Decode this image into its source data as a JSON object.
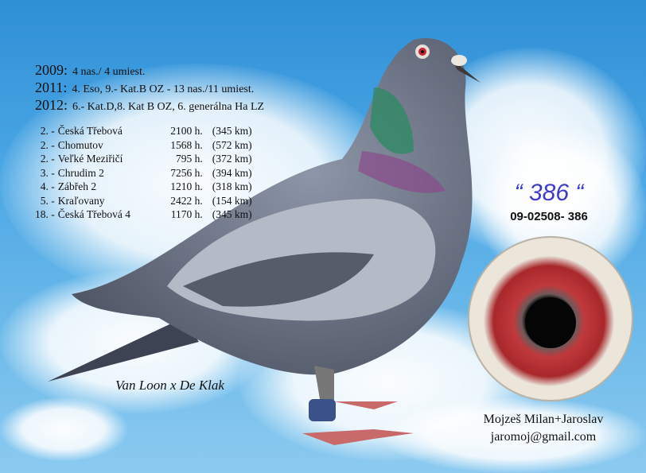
{
  "results": [
    {
      "year": "2009:",
      "text": "4 nas./ 4 umiest."
    },
    {
      "year": "2011:",
      "text": "4. Eso, 9.- Kat.B  OZ  -  13 nas./11 umiest."
    },
    {
      "year": "2012:",
      "text": "6.- Kat.D,8. Kat B  OZ, 6. generálna Ha LZ"
    }
  ],
  "races": [
    {
      "place": "2. -",
      "name": "Česká Třebová",
      "birds": "2100 h.",
      "distance": "(345 km)"
    },
    {
      "place": "2. -",
      "name": "Chomutov",
      "birds": "1568 h.",
      "distance": "(572 km)"
    },
    {
      "place": "2. -",
      "name": "Veľké Meziřičí",
      "birds": "795 h.",
      "distance": "(372 km)"
    },
    {
      "place": "3. -",
      "name": "Chrudim 2",
      "birds": "7256 h.",
      "distance": "(394 km)"
    },
    {
      "place": "4. -",
      "name": "Zábřeh 2",
      "birds": "1210 h.",
      "distance": "(318 km)"
    },
    {
      "place": "5. -",
      "name": "Kraľovany",
      "birds": "2422 h.",
      "distance": "(154 km)"
    },
    {
      "place": "18. -",
      "name": "Česká Třebová 4",
      "birds": "1170 h.",
      "distance": "(345 km)"
    }
  ],
  "ring_short": "“ 386 “",
  "ring_number": "09-02508- 386",
  "pedigree": "Van Loon x De Klak",
  "owner": {
    "name": "Mojzeš Milan+Jaroslav",
    "email": "jaromoj@gmail.com"
  },
  "colors": {
    "sky": "#4aa6e4",
    "ring_text": "#3b3cc8",
    "eye_iris": "#c0393c"
  }
}
